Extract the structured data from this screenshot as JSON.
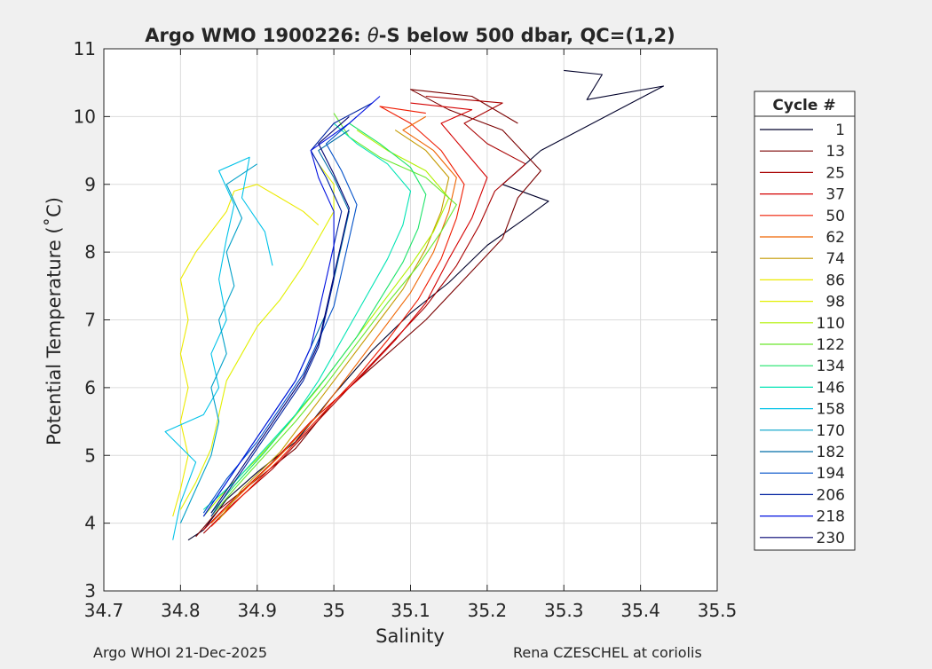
{
  "chart_data": {
    "type": "line",
    "title_main": "Argo WMO 1900226: ",
    "title_theta": "θ",
    "title_rest": "-S below 500 dbar,  QC=(1,2)",
    "xlabel": "Salinity",
    "ylabel": "Potential Temperature (˚C)",
    "xlim": [
      34.7,
      35.5
    ],
    "ylim": [
      3,
      11
    ],
    "xticks": [
      "34.7",
      "34.8",
      "34.9",
      "35",
      "35.1",
      "35.2",
      "35.3",
      "35.4",
      "35.5"
    ],
    "yticks": [
      "3",
      "4",
      "5",
      "6",
      "7",
      "8",
      "9",
      "10",
      "11"
    ],
    "grid": true,
    "legend": {
      "title": "Cycle #",
      "placement": "outside-right",
      "entries": [
        "1",
        "13",
        "25",
        "37",
        "50",
        "62",
        "74",
        "86",
        "98",
        "110",
        "122",
        "134",
        "146",
        "158",
        "170",
        "182",
        "194",
        "206",
        "218",
        "230"
      ],
      "colors": [
        "#00002a",
        "#7a0000",
        "#a80000",
        "#d40000",
        "#ef1b00",
        "#ef6400",
        "#c49a00",
        "#ecea00",
        "#e2f000",
        "#b2f000",
        "#6ae82c",
        "#1ee46a",
        "#00e4b4",
        "#00c2e8",
        "#00a0c8",
        "#006ea8",
        "#0050c8",
        "#0022a0",
        "#0010e0",
        "#000070"
      ]
    },
    "series": [
      {
        "cycle": "1",
        "points": [
          [
            34.81,
            3.75
          ],
          [
            34.83,
            3.9
          ],
          [
            34.86,
            4.35
          ],
          [
            34.9,
            4.75
          ],
          [
            34.95,
            5.2
          ],
          [
            35.0,
            5.9
          ],
          [
            35.05,
            6.55
          ],
          [
            35.1,
            7.1
          ],
          [
            35.15,
            7.55
          ],
          [
            35.2,
            8.1
          ],
          [
            35.25,
            8.5
          ],
          [
            35.28,
            8.75
          ],
          [
            35.22,
            9.0
          ],
          [
            35.27,
            9.5
          ],
          [
            35.43,
            10.45
          ],
          [
            35.33,
            10.25
          ],
          [
            35.35,
            10.62
          ],
          [
            35.3,
            10.68
          ]
        ]
      },
      {
        "cycle": "13",
        "points": [
          [
            34.82,
            3.8
          ],
          [
            34.85,
            4.2
          ],
          [
            34.9,
            4.65
          ],
          [
            34.95,
            5.1
          ],
          [
            35.0,
            5.8
          ],
          [
            35.06,
            6.4
          ],
          [
            35.12,
            7.0
          ],
          [
            35.17,
            7.6
          ],
          [
            35.22,
            8.2
          ],
          [
            35.24,
            8.8
          ],
          [
            35.27,
            9.2
          ],
          [
            35.22,
            9.8
          ],
          [
            35.15,
            10.1
          ],
          [
            35.1,
            10.4
          ],
          [
            35.18,
            10.3
          ],
          [
            35.24,
            9.9
          ]
        ]
      },
      {
        "cycle": "25",
        "points": [
          [
            34.83,
            3.85
          ],
          [
            34.87,
            4.3
          ],
          [
            34.92,
            4.8
          ],
          [
            34.97,
            5.4
          ],
          [
            35.02,
            6.0
          ],
          [
            35.07,
            6.6
          ],
          [
            35.12,
            7.2
          ],
          [
            35.16,
            7.8
          ],
          [
            35.19,
            8.4
          ],
          [
            35.21,
            8.9
          ],
          [
            35.25,
            9.3
          ],
          [
            35.2,
            9.6
          ],
          [
            35.17,
            9.9
          ],
          [
            35.22,
            10.2
          ],
          [
            35.12,
            10.3
          ]
        ]
      },
      {
        "cycle": "37",
        "points": [
          [
            34.83,
            3.9
          ],
          [
            34.86,
            4.25
          ],
          [
            34.92,
            4.9
          ],
          [
            34.97,
            5.5
          ],
          [
            35.03,
            6.1
          ],
          [
            35.08,
            6.7
          ],
          [
            35.12,
            7.25
          ],
          [
            35.15,
            7.9
          ],
          [
            35.18,
            8.5
          ],
          [
            35.2,
            9.1
          ],
          [
            35.17,
            9.5
          ],
          [
            35.14,
            9.9
          ],
          [
            35.18,
            10.1
          ],
          [
            35.1,
            10.2
          ]
        ]
      },
      {
        "cycle": "50",
        "points": [
          [
            34.84,
            3.95
          ],
          [
            34.88,
            4.4
          ],
          [
            34.93,
            4.95
          ],
          [
            34.98,
            5.55
          ],
          [
            35.03,
            6.15
          ],
          [
            35.07,
            6.7
          ],
          [
            35.11,
            7.3
          ],
          [
            35.14,
            7.9
          ],
          [
            35.16,
            8.5
          ],
          [
            35.17,
            9.0
          ],
          [
            35.14,
            9.5
          ],
          [
            35.1,
            9.9
          ],
          [
            35.06,
            10.15
          ],
          [
            35.12,
            10.05
          ]
        ]
      },
      {
        "cycle": "62",
        "points": [
          [
            34.84,
            4.0
          ],
          [
            34.88,
            4.45
          ],
          [
            34.93,
            5.0
          ],
          [
            34.98,
            5.6
          ],
          [
            35.02,
            6.2
          ],
          [
            35.06,
            6.8
          ],
          [
            35.1,
            7.4
          ],
          [
            35.13,
            8.0
          ],
          [
            35.15,
            8.6
          ],
          [
            35.16,
            9.1
          ],
          [
            35.13,
            9.5
          ],
          [
            35.09,
            9.8
          ],
          [
            35.12,
            10.0
          ]
        ]
      },
      {
        "cycle": "74",
        "points": [
          [
            34.85,
            4.05
          ],
          [
            34.88,
            4.5
          ],
          [
            34.93,
            5.05
          ],
          [
            34.97,
            5.65
          ],
          [
            35.01,
            6.25
          ],
          [
            35.05,
            6.85
          ],
          [
            35.09,
            7.45
          ],
          [
            35.12,
            8.05
          ],
          [
            35.14,
            8.6
          ],
          [
            35.15,
            9.1
          ],
          [
            35.12,
            9.5
          ],
          [
            35.08,
            9.8
          ]
        ]
      },
      {
        "cycle": "86",
        "points": [
          [
            34.79,
            4.1
          ],
          [
            34.8,
            4.5
          ],
          [
            34.81,
            5.0
          ],
          [
            34.8,
            5.5
          ],
          [
            34.81,
            6.0
          ],
          [
            34.8,
            6.5
          ],
          [
            34.81,
            7.0
          ],
          [
            34.8,
            7.6
          ],
          [
            34.82,
            8.0
          ],
          [
            34.84,
            8.3
          ],
          [
            34.86,
            8.6
          ],
          [
            34.87,
            8.9
          ],
          [
            34.9,
            9.0
          ],
          [
            34.93,
            8.8
          ],
          [
            34.96,
            8.6
          ],
          [
            34.98,
            8.4
          ]
        ]
      },
      {
        "cycle": "98",
        "points": [
          [
            34.8,
            4.2
          ],
          [
            34.82,
            4.6
          ],
          [
            34.84,
            5.1
          ],
          [
            34.85,
            5.6
          ],
          [
            34.86,
            6.1
          ],
          [
            34.88,
            6.5
          ],
          [
            34.9,
            6.9
          ],
          [
            34.93,
            7.3
          ],
          [
            34.96,
            7.8
          ],
          [
            34.98,
            8.2
          ],
          [
            35.0,
            8.6
          ],
          [
            35.0,
            9.0
          ],
          [
            34.98,
            9.3
          ]
        ]
      },
      {
        "cycle": "110",
        "points": [
          [
            34.83,
            4.1
          ],
          [
            34.86,
            4.5
          ],
          [
            34.9,
            4.95
          ],
          [
            34.94,
            5.45
          ],
          [
            34.98,
            6.0
          ],
          [
            35.02,
            6.6
          ],
          [
            35.06,
            7.2
          ],
          [
            35.1,
            7.8
          ],
          [
            35.13,
            8.3
          ],
          [
            35.15,
            8.8
          ],
          [
            35.12,
            9.2
          ],
          [
            35.07,
            9.5
          ],
          [
            35.03,
            9.8
          ]
        ]
      },
      {
        "cycle": "122",
        "points": [
          [
            34.84,
            4.1
          ],
          [
            34.87,
            4.5
          ],
          [
            34.91,
            5.0
          ],
          [
            34.95,
            5.5
          ],
          [
            34.99,
            6.05
          ],
          [
            35.03,
            6.65
          ],
          [
            35.07,
            7.25
          ],
          [
            35.11,
            7.8
          ],
          [
            35.14,
            8.3
          ],
          [
            35.16,
            8.7
          ],
          [
            35.12,
            9.1
          ],
          [
            35.06,
            9.4
          ],
          [
            35.02,
            9.7
          ],
          [
            35.0,
            10.05
          ]
        ]
      },
      {
        "cycle": "134",
        "points": [
          [
            34.84,
            4.15
          ],
          [
            34.87,
            4.55
          ],
          [
            34.91,
            5.05
          ],
          [
            34.95,
            5.6
          ],
          [
            34.99,
            6.15
          ],
          [
            35.03,
            6.75
          ],
          [
            35.06,
            7.3
          ],
          [
            35.09,
            7.85
          ],
          [
            35.11,
            8.35
          ],
          [
            35.12,
            8.85
          ],
          [
            35.1,
            9.25
          ],
          [
            35.06,
            9.6
          ],
          [
            35.02,
            9.9
          ]
        ]
      },
      {
        "cycle": "146",
        "points": [
          [
            34.83,
            4.2
          ],
          [
            34.87,
            4.6
          ],
          [
            34.91,
            5.1
          ],
          [
            34.95,
            5.6
          ],
          [
            34.98,
            6.1
          ],
          [
            35.01,
            6.7
          ],
          [
            35.04,
            7.3
          ],
          [
            35.07,
            7.9
          ],
          [
            35.09,
            8.4
          ],
          [
            35.1,
            8.9
          ],
          [
            35.07,
            9.3
          ],
          [
            35.03,
            9.6
          ],
          [
            35.0,
            9.9
          ]
        ]
      },
      {
        "cycle": "158",
        "points": [
          [
            34.79,
            3.75
          ],
          [
            34.8,
            4.3
          ],
          [
            34.82,
            4.9
          ],
          [
            34.78,
            5.35
          ],
          [
            34.83,
            5.6
          ],
          [
            34.85,
            6.0
          ],
          [
            34.84,
            6.5
          ],
          [
            34.86,
            7.0
          ],
          [
            34.85,
            7.6
          ],
          [
            34.86,
            8.2
          ],
          [
            34.87,
            8.7
          ],
          [
            34.85,
            9.2
          ],
          [
            34.89,
            9.4
          ],
          [
            34.88,
            8.8
          ],
          [
            34.91,
            8.3
          ],
          [
            34.92,
            7.8
          ]
        ]
      },
      {
        "cycle": "170",
        "points": [
          [
            34.8,
            4.0
          ],
          [
            34.82,
            4.5
          ],
          [
            34.84,
            5.0
          ],
          [
            34.85,
            5.5
          ],
          [
            34.84,
            6.0
          ],
          [
            34.86,
            6.5
          ],
          [
            34.85,
            7.0
          ],
          [
            34.87,
            7.5
          ],
          [
            34.86,
            8.0
          ],
          [
            34.88,
            8.5
          ],
          [
            34.86,
            9.0
          ],
          [
            34.9,
            9.3
          ]
        ]
      },
      {
        "cycle": "182",
        "points": [
          [
            34.83,
            4.1
          ],
          [
            34.86,
            4.6
          ],
          [
            34.89,
            5.1
          ],
          [
            34.92,
            5.6
          ],
          [
            34.95,
            6.1
          ],
          [
            34.97,
            6.6
          ],
          [
            34.99,
            7.1
          ],
          [
            35.0,
            7.6
          ],
          [
            35.01,
            8.1
          ],
          [
            35.02,
            8.6
          ],
          [
            35.0,
            9.1
          ],
          [
            34.98,
            9.5
          ],
          [
            35.02,
            9.8
          ]
        ]
      },
      {
        "cycle": "194",
        "points": [
          [
            34.83,
            4.15
          ],
          [
            34.86,
            4.65
          ],
          [
            34.9,
            5.2
          ],
          [
            34.93,
            5.7
          ],
          [
            34.96,
            6.2
          ],
          [
            34.98,
            6.7
          ],
          [
            35.0,
            7.2
          ],
          [
            35.01,
            7.7
          ],
          [
            35.02,
            8.2
          ],
          [
            35.03,
            8.7
          ],
          [
            35.01,
            9.2
          ],
          [
            34.99,
            9.6
          ],
          [
            35.03,
            10.0
          ]
        ]
      },
      {
        "cycle": "206",
        "points": [
          [
            34.84,
            4.1
          ],
          [
            34.87,
            4.6
          ],
          [
            34.9,
            5.1
          ],
          [
            34.93,
            5.6
          ],
          [
            34.96,
            6.1
          ],
          [
            34.98,
            6.6
          ],
          [
            34.99,
            7.1
          ],
          [
            35.0,
            7.6
          ],
          [
            35.0,
            8.1
          ],
          [
            35.01,
            8.6
          ],
          [
            34.99,
            9.1
          ],
          [
            34.97,
            9.5
          ],
          [
            35.0,
            9.9
          ],
          [
            35.05,
            10.2
          ]
        ]
      },
      {
        "cycle": "218",
        "points": [
          [
            34.83,
            4.1
          ],
          [
            34.86,
            4.6
          ],
          [
            34.89,
            5.1
          ],
          [
            34.92,
            5.6
          ],
          [
            34.95,
            6.1
          ],
          [
            34.97,
            6.6
          ],
          [
            34.98,
            7.1
          ],
          [
            34.99,
            7.6
          ],
          [
            35.0,
            8.1
          ],
          [
            35.0,
            8.6
          ],
          [
            34.98,
            9.1
          ],
          [
            34.97,
            9.5
          ],
          [
            35.02,
            9.9
          ],
          [
            35.06,
            10.3
          ]
        ]
      },
      {
        "cycle": "230",
        "points": [
          [
            34.84,
            4.15
          ],
          [
            34.87,
            4.65
          ],
          [
            34.9,
            5.15
          ],
          [
            34.93,
            5.65
          ],
          [
            34.96,
            6.15
          ],
          [
            34.98,
            6.65
          ],
          [
            34.99,
            7.15
          ],
          [
            35.0,
            7.65
          ],
          [
            35.01,
            8.15
          ],
          [
            35.02,
            8.65
          ],
          [
            35.0,
            9.15
          ],
          [
            34.98,
            9.6
          ],
          [
            35.02,
            10.0
          ]
        ]
      }
    ]
  },
  "footer": {
    "left": "Argo WHOI 21-Dec-2025",
    "right": "Rena CZESCHEL at coriolis"
  }
}
